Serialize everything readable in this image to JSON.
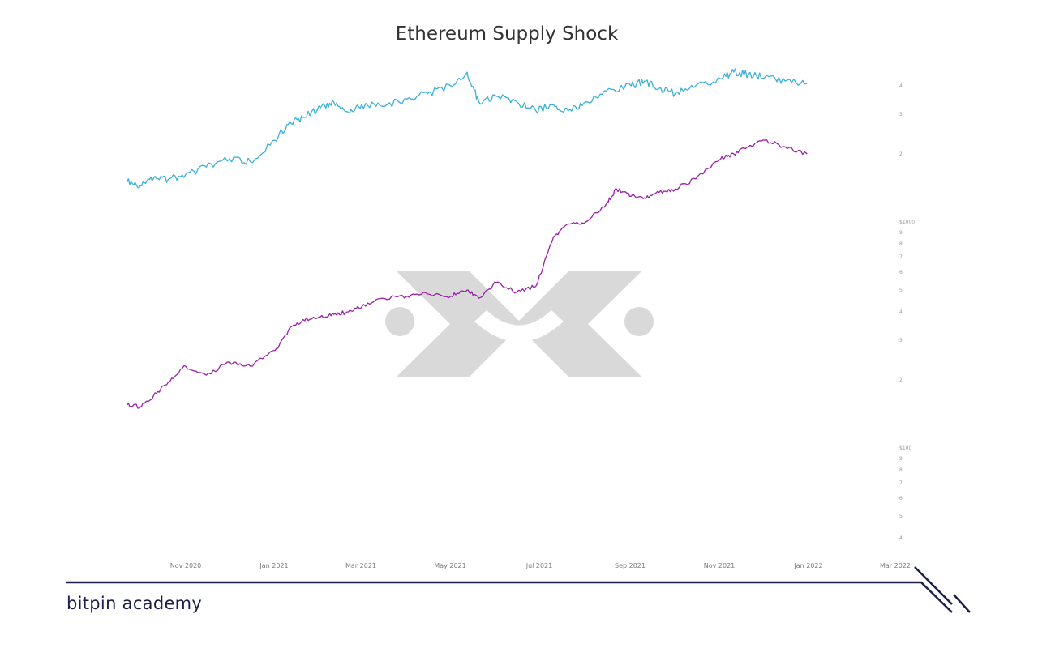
{
  "brand": {
    "name": "bitpin academy",
    "color": "#1c1f4a"
  },
  "chart_data": {
    "type": "line",
    "title": "Ethereum Supply Shock",
    "x_tick_labels": [
      "Nov 2020",
      "Jan 2021",
      "Mar 2021",
      "May 2021",
      "Jul 2021",
      "Sep 2021",
      "Nov 2021",
      "Jan 2022",
      "Mar 2022"
    ],
    "y_scale": "log",
    "y_major_labels": [
      "$1000",
      "$100"
    ],
    "y_minor_labels_upper": [
      "4",
      "3",
      "2"
    ],
    "y_minor_labels_mid": [
      "9",
      "8",
      "7",
      "6",
      "5",
      "4",
      "3",
      "2"
    ],
    "y_minor_labels_lower": [
      "9",
      "8",
      "7",
      "6",
      "5",
      "4"
    ],
    "series": [
      {
        "color": "#3bb0d8",
        "x": [
          "2020-09-22",
          "2020-10-01",
          "2020-10-10",
          "2020-10-20",
          "2020-11-01",
          "2020-11-15",
          "2020-12-01",
          "2020-12-15",
          "2021-01-01",
          "2021-01-10",
          "2021-01-20",
          "2021-02-01",
          "2021-02-10",
          "2021-02-20",
          "2021-03-01",
          "2021-03-15",
          "2021-04-01",
          "2021-04-15",
          "2021-05-01",
          "2021-05-12",
          "2021-05-20",
          "2021-06-01",
          "2021-06-15",
          "2021-06-28",
          "2021-07-10",
          "2021-07-20",
          "2021-08-01",
          "2021-08-15",
          "2021-09-01",
          "2021-09-10",
          "2021-09-20",
          "2021-10-01",
          "2021-10-15",
          "2021-11-01",
          "2021-11-10",
          "2021-11-20",
          "2021-12-01",
          "2021-12-15",
          "2021-12-30"
        ],
        "y": [
          1500,
          1450,
          1560,
          1540,
          1620,
          1750,
          1900,
          1850,
          2300,
          2700,
          2900,
          3200,
          3400,
          3050,
          3300,
          3250,
          3500,
          3700,
          4000,
          4600,
          3400,
          3600,
          3400,
          3100,
          3300,
          3100,
          3400,
          3800,
          4000,
          4200,
          3900,
          3700,
          4000,
          4300,
          4600,
          4500,
          4350,
          4200,
          4100
        ]
      },
      {
        "color": "#9a1fa8",
        "x": [
          "2020-09-22",
          "2020-10-01",
          "2020-10-10",
          "2020-10-20",
          "2020-11-01",
          "2020-11-15",
          "2020-12-01",
          "2020-12-15",
          "2021-01-01",
          "2021-01-10",
          "2021-01-20",
          "2021-02-01",
          "2021-02-10",
          "2021-02-20",
          "2021-03-01",
          "2021-03-15",
          "2021-04-01",
          "2021-04-15",
          "2021-05-01",
          "2021-05-12",
          "2021-05-20",
          "2021-06-01",
          "2021-06-15",
          "2021-06-28",
          "2021-07-10",
          "2021-07-20",
          "2021-08-01",
          "2021-08-15",
          "2021-08-22",
          "2021-09-01",
          "2021-09-10",
          "2021-09-20",
          "2021-10-01",
          "2021-10-15",
          "2021-11-01",
          "2021-11-10",
          "2021-11-20",
          "2021-12-01",
          "2021-12-15",
          "2021-12-30"
        ],
        "y": [
          155,
          152,
          170,
          195,
          230,
          210,
          240,
          230,
          270,
          330,
          370,
          380,
          390,
          400,
          420,
          460,
          470,
          480,
          470,
          500,
          460,
          540,
          490,
          520,
          860,
          980,
          1000,
          1200,
          1400,
          1300,
          1280,
          1350,
          1400,
          1550,
          1900,
          2000,
          2150,
          2300,
          2150,
          2000
        ]
      }
    ]
  }
}
